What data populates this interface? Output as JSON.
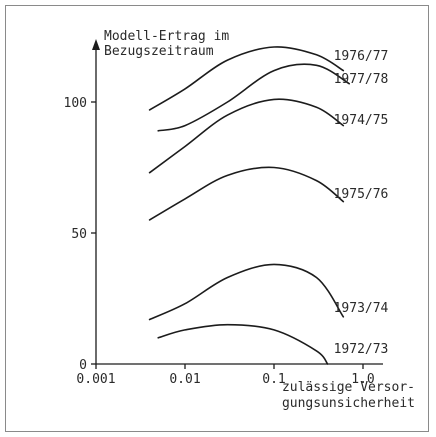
{
  "chart_data": {
    "type": "line",
    "title": "",
    "ylabel": "Modell-Ertrag im Bezugszeitraum",
    "ylabel_lines": [
      "Modell-Ertrag im",
      "Bezugszeitraum"
    ],
    "xlabel": "zulässige Versorgungsunsicherheit",
    "xlabel_lines": [
      "zulässige Versor-",
      "gungsunsicherheit"
    ],
    "x_scale": "log",
    "xlim": [
      0.001,
      1.0
    ],
    "ylim": [
      0,
      125
    ],
    "x_ticks": [
      0.001,
      0.01,
      0.1,
      1.0
    ],
    "x_tick_labels": [
      "0.001",
      "0.01",
      "0.1",
      "1.0"
    ],
    "y_ticks": [
      0,
      50,
      100
    ],
    "y_tick_labels": [
      "0",
      "50",
      "100"
    ],
    "grid": false,
    "series": [
      {
        "name": "1976/77",
        "x": [
          0.004,
          0.01,
          0.03,
          0.1,
          0.3,
          0.6
        ],
        "y": [
          97,
          105,
          116,
          121,
          118,
          112
        ]
      },
      {
        "name": "1977/78",
        "x": [
          0.005,
          0.01,
          0.03,
          0.1,
          0.3,
          0.7
        ],
        "y": [
          89,
          91,
          100,
          112,
          114,
          107
        ]
      },
      {
        "name": "1974/75",
        "x": [
          0.004,
          0.01,
          0.03,
          0.1,
          0.3,
          0.6
        ],
        "y": [
          73,
          83,
          95,
          101,
          98,
          91
        ]
      },
      {
        "name": "1975/76",
        "x": [
          0.004,
          0.01,
          0.03,
          0.1,
          0.3,
          0.6
        ],
        "y": [
          55,
          63,
          72,
          75,
          70,
          62
        ]
      },
      {
        "name": "1973/74",
        "x": [
          0.004,
          0.01,
          0.03,
          0.1,
          0.3,
          0.6
        ],
        "y": [
          17,
          23,
          33,
          38,
          33,
          18
        ]
      },
      {
        "name": "1972/73",
        "x": [
          0.005,
          0.01,
          0.03,
          0.1,
          0.3,
          0.4
        ],
        "y": [
          10,
          13,
          15,
          13,
          5,
          0
        ]
      }
    ]
  }
}
